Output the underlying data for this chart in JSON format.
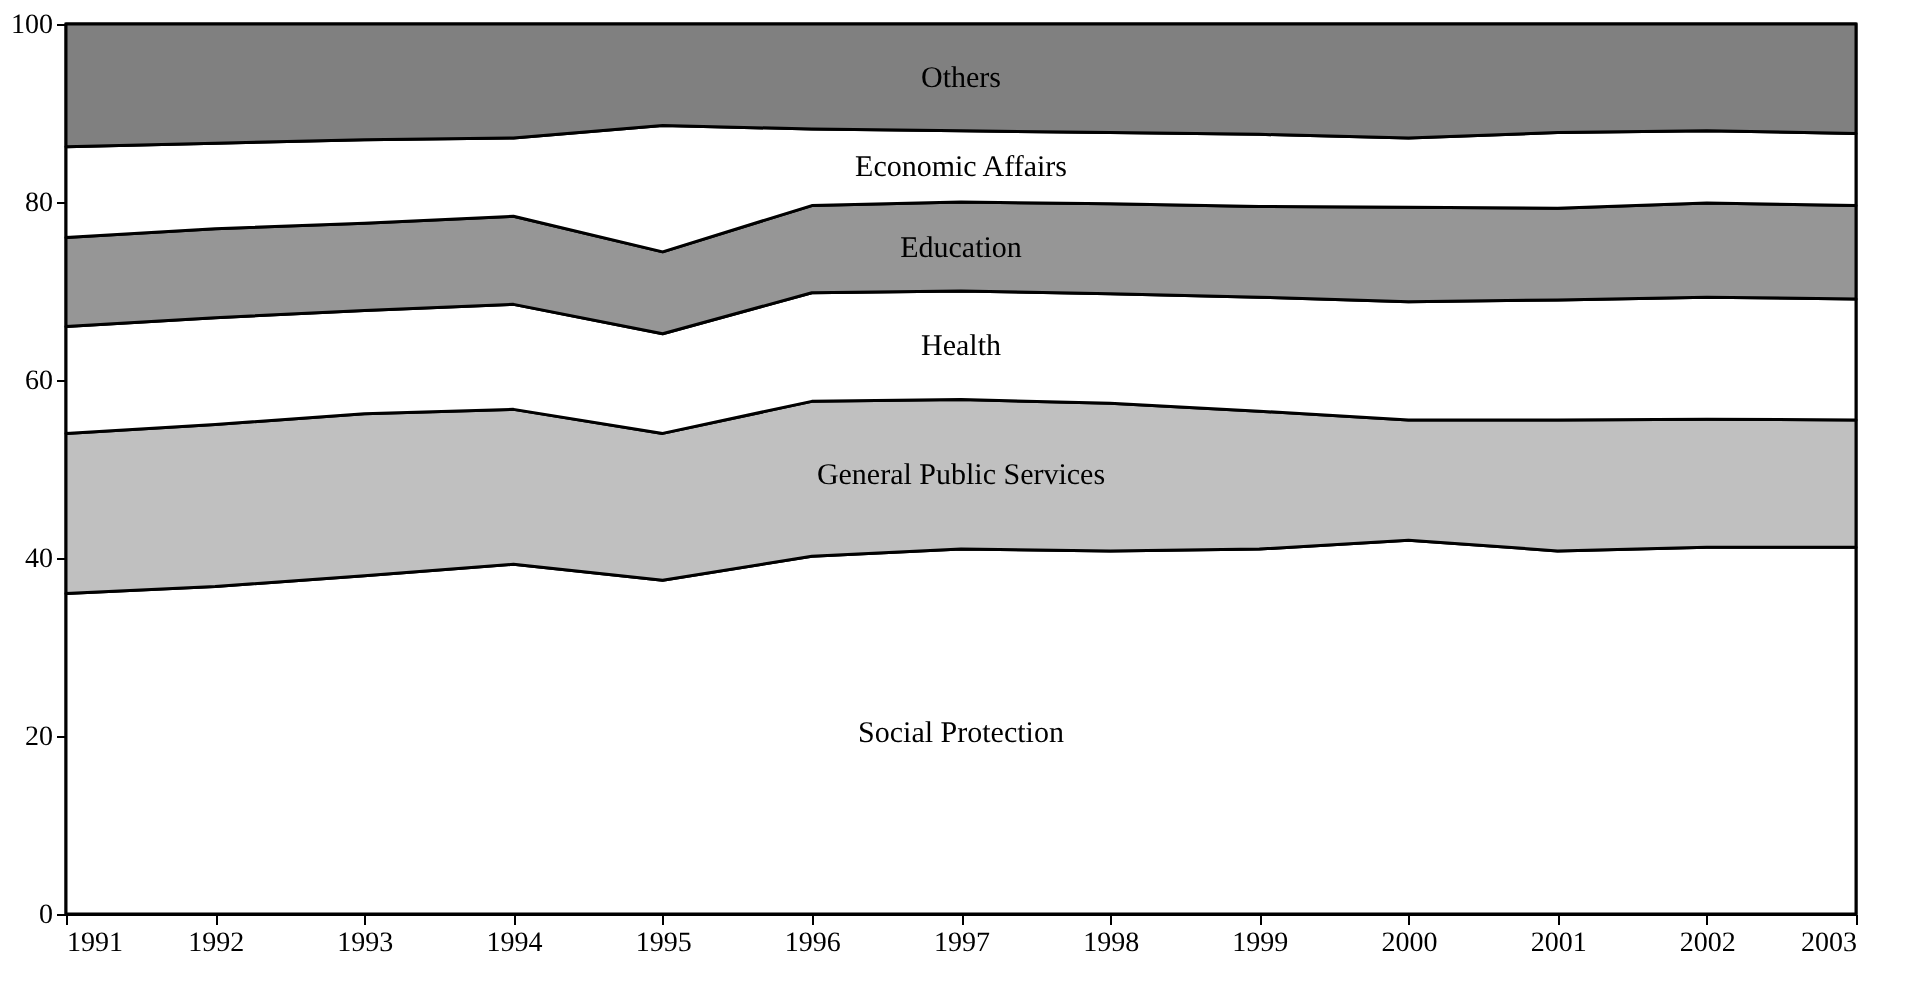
{
  "chart_data": {
    "type": "area",
    "stacked": true,
    "x": [
      1991,
      1992,
      1993,
      1994,
      1995,
      1996,
      1997,
      1998,
      1999,
      2000,
      2001,
      2002,
      2003
    ],
    "xlim": [
      1991,
      2003
    ],
    "xticks": [
      1991,
      1992,
      1993,
      1994,
      1995,
      1996,
      1997,
      1998,
      1999,
      2000,
      2001,
      2002,
      2003
    ],
    "ylim": [
      0,
      100
    ],
    "yticks": [
      0,
      20,
      40,
      60,
      80,
      100
    ],
    "grid": false,
    "legend": false,
    "series": [
      {
        "name": "Social Protection",
        "color": "#ffffff",
        "values": [
          36,
          36.8,
          38,
          39.3,
          37.5,
          40.2,
          41,
          40.8,
          41,
          42,
          40.8,
          41.2,
          41.2
        ]
      },
      {
        "name": "General Public Services",
        "color": "#c0c0c0",
        "values": [
          18,
          18.2,
          18.2,
          17.4,
          16.5,
          17.4,
          16.8,
          16.6,
          15.5,
          13.5,
          14.7,
          14.4,
          14.3
        ]
      },
      {
        "name": "Health",
        "color": "#ffffff",
        "values": [
          12,
          12,
          11.6,
          11.8,
          11.2,
          12.2,
          12.2,
          12.3,
          12.8,
          13.3,
          13.5,
          13.7,
          13.6
        ]
      },
      {
        "name": "Education",
        "color": "#969696",
        "values": [
          10,
          10,
          9.8,
          9.9,
          9.2,
          9.8,
          10,
          10.1,
          10.2,
          10.6,
          10.3,
          10.6,
          10.5
        ]
      },
      {
        "name": "Economic Affairs",
        "color": "#ffffff",
        "values": [
          10.2,
          9.6,
          9.4,
          8.8,
          14.2,
          8.6,
          8,
          8,
          8.1,
          7.8,
          8.5,
          8.1,
          8.1
        ]
      },
      {
        "name": "Others",
        "color": "#808080",
        "values": [
          13.8,
          13.4,
          13,
          12.8,
          11.4,
          11.8,
          12,
          12.2,
          12.4,
          12.8,
          12.2,
          12,
          12.3
        ]
      }
    ]
  }
}
